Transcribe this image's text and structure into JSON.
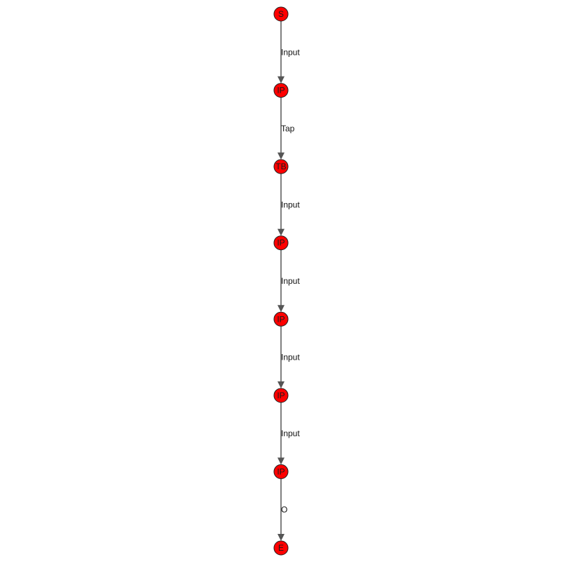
{
  "graph": {
    "node_color": "#ff0000",
    "edge_color": "#555555",
    "nodes": [
      {
        "id": "n0",
        "label": "S"
      },
      {
        "id": "n1",
        "label": "IP"
      },
      {
        "id": "n2",
        "label": "TB"
      },
      {
        "id": "n3",
        "label": "IP"
      },
      {
        "id": "n4",
        "label": "IP"
      },
      {
        "id": "n5",
        "label": "IP"
      },
      {
        "id": "n6",
        "label": "IP"
      },
      {
        "id": "n7",
        "label": "E"
      }
    ],
    "edges": [
      {
        "from": "n0",
        "to": "n1",
        "label": "Input"
      },
      {
        "from": "n1",
        "to": "n2",
        "label": "Tap"
      },
      {
        "from": "n2",
        "to": "n3",
        "label": "Input"
      },
      {
        "from": "n3",
        "to": "n4",
        "label": "Input"
      },
      {
        "from": "n4",
        "to": "n5",
        "label": "Input"
      },
      {
        "from": "n5",
        "to": "n6",
        "label": "Input"
      },
      {
        "from": "n6",
        "to": "n7",
        "label": "O"
      }
    ]
  }
}
